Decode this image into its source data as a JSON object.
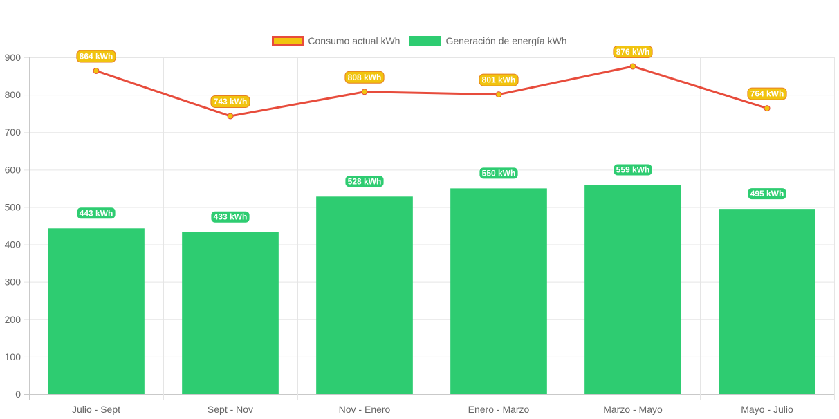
{
  "chart_data": {
    "type": "bar",
    "categories": [
      "Julio - Sept",
      "Sept - Nov",
      "Nov - Enero",
      "Enero - Marzo",
      "Marzo - Mayo",
      "Mayo - Julio"
    ],
    "series": [
      {
        "name": "Consumo actual kWh",
        "type": "line",
        "values": [
          864,
          743,
          808,
          801,
          876,
          764
        ],
        "labels": [
          "864 kWh",
          "743 kWh",
          "808 kWh",
          "801 kWh",
          "876 kWh",
          "764 kWh"
        ],
        "color": "#e74c3c",
        "fill_color": "#f1c40f"
      },
      {
        "name": "Generación de energía kWh",
        "type": "bar",
        "values": [
          443,
          433,
          528,
          550,
          559,
          495
        ],
        "labels": [
          "443 kWh",
          "433 kWh",
          "528 kWh",
          "550 kWh",
          "559 kWh",
          "495 kWh"
        ],
        "color": "#2ecc71"
      }
    ],
    "y_ticks": [
      "0",
      "100",
      "200",
      "300",
      "400",
      "500",
      "600",
      "700",
      "800",
      "900"
    ],
    "ylim": [
      0,
      900
    ],
    "grid": true,
    "legend_position": "top-center"
  }
}
